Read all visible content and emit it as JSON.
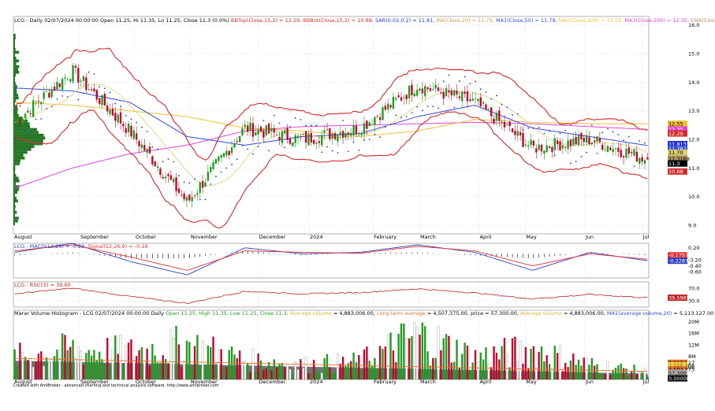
{
  "colors": {
    "bull": "#1e9a1e",
    "bear": "#c0002a",
    "bbands": "#d42a2a",
    "sar": "#2233cc",
    "ma20": "#d8d070",
    "ma50": "#3048d8",
    "ma100": "#f0c030",
    "ma200": "#e040e0",
    "ema7": "#b09060",
    "macd": "#3040c0",
    "signal": "#e03030",
    "rsi": "#c02020",
    "profile": "#006000",
    "volume_ma": "#e07030",
    "volume_avg_fill": "#5a5a5a"
  },
  "price_panel": {
    "header": [
      {
        "text": "LCG - Daily 02/07/2024 00:00:00 Open 11.25, Hi 11.35, Lo 11.25, Close 11.3 (0.0%)",
        "color": "#000000"
      },
      {
        "text": "BBTop(Close,15,2) = 12.29,",
        "color": "#d42a2a"
      },
      {
        "text": "BBBot(Close,15,2) = 10.88,",
        "color": "#d42a2a"
      },
      {
        "text": "SAR(0.02,0.2) = 11.81,",
        "color": "#2233cc"
      },
      {
        "text": "MA(Close,20) = 11.70,",
        "color": "#c0a040"
      },
      {
        "text": "MA1(Close,50) = 11.79,",
        "color": "#3048d8"
      },
      {
        "text": "MA2(Close,100) = 12.55,",
        "color": "#f0c030"
      },
      {
        "text": "MA3(Close,200) = 12.35,",
        "color": "#e040e0"
      },
      {
        "text": "EMA(Close,7) = 11.32",
        "color": "#b09060"
      }
    ],
    "y_ticks": [
      "16.0",
      "15.0",
      "14.0",
      "13.0",
      "12.0",
      "11.0",
      "10.0",
      "9.0"
    ],
    "value_tags": [
      {
        "text": "12.55",
        "bg": "#f0c030",
        "fg": "#000000",
        "v": 12.55
      },
      {
        "text": "12.35",
        "bg": "#e040e0",
        "fg": "#ffffff",
        "v": 12.35
      },
      {
        "text": "12.29",
        "bg": "#d42a2a",
        "fg": "#ffffff",
        "v": 12.21
      },
      {
        "text": "11.8131",
        "bg": "#2233cc",
        "fg": "#ffffff",
        "v": 11.84
      },
      {
        "text": "11.787",
        "bg": "#3048d8",
        "fg": "#ffffff",
        "v": 11.68
      },
      {
        "text": "11.70",
        "bg": "#d8d070",
        "fg": "#000000",
        "v": 11.54
      },
      {
        "text": "11.3168",
        "bg": "#b09060",
        "fg": "#000000",
        "v": 11.33
      },
      {
        "text": "11.3",
        "bg": "#000000",
        "fg": "#ffffff",
        "v": 11.16
      },
      {
        "text": "10.88",
        "bg": "#d42a2a",
        "fg": "#ffffff",
        "v": 10.88
      }
    ]
  },
  "x_axis": {
    "labels": [
      "August",
      "September",
      "October",
      "November",
      "December",
      "2024",
      "February",
      "March",
      "April",
      "May",
      "Jun",
      "Jul"
    ]
  },
  "macd_panel": {
    "header": [
      {
        "text": "LCG - MACD(12,26) = -0.23,",
        "color": "#3040c0"
      },
      {
        "text": "Signal(12,26,9) = -0.18",
        "color": "#e03030"
      }
    ],
    "y_ticks": [
      "0.20",
      "-0.20",
      "-0.40",
      "-0.60"
    ],
    "value_tags": [
      {
        "text": "-0.17574",
        "bg": "#e03030",
        "fg": "#ffffff"
      },
      {
        "text": "-0.22877",
        "bg": "#3040c0",
        "fg": "#ffffff"
      }
    ]
  },
  "rsi_panel": {
    "header": [
      {
        "text": "LCG - RSI(15) = 39.60",
        "color": "#c02020"
      }
    ],
    "y_ticks": [
      "70.0",
      "30.0"
    ],
    "value_tags": [
      {
        "text": "39.5965",
        "bg": "#c02020",
        "fg": "#ffffff"
      }
    ]
  },
  "volume_panel": {
    "header": [
      {
        "text": "Marar Volume Histogram - LCG  02/07/2024 00:00:00  Daily",
        "color": "#000000"
      },
      {
        "text": "Open 11.25, High 11.35, Low 11.25, Close 11.3,",
        "color": "#1e9a1e"
      },
      {
        "text": "Average volume",
        "color": "#e0b030"
      },
      {
        "text": "= 4,883,006.00,",
        "color": "#000000"
      },
      {
        "text": "Long term average",
        "color": "#e07030"
      },
      {
        "text": "= 4,507,375.00, price = 57,300.00,",
        "color": "#000000"
      },
      {
        "text": "Average volume",
        "color": "#e0b030"
      },
      {
        "text": "= 4,883,006.00,",
        "color": "#000000"
      },
      {
        "text": "MA1(average volume,20)",
        "color": "#3048d8"
      },
      {
        "text": "= 5,113,127.00",
        "color": "#000000"
      }
    ],
    "y_ticks": [
      "20M",
      "16M",
      "12M",
      "8M"
    ],
    "value_tags": [
      {
        "text": "5,113,127",
        "bg": "#e07030",
        "fg": "#000000"
      },
      {
        "text": "4,883,006",
        "bg": "#f0d040",
        "fg": "#000000"
      },
      {
        "text": "4,883,006",
        "bg": "#f0d040",
        "fg": "#000000"
      },
      {
        "text": "4,507,375",
        "bg": "#e07030",
        "fg": "#000000"
      },
      {
        "text": "57,300",
        "bg": "#b0b0b0",
        "fg": "#000000"
      },
      {
        "text": "0.000000",
        "bg": "#000000",
        "fg": "#ffffff"
      }
    ]
  },
  "footer": "Created with AmiBroker - advanced charting and technical analysis software. http://www.amibroker.com",
  "chart_data": {
    "type": "line",
    "ticker": "LCG",
    "x": [
      "2023-08",
      "2023-09",
      "2023-10",
      "2023-11",
      "2023-12",
      "2024-01",
      "2024-02",
      "2024-03",
      "2024-04",
      "2024-05",
      "2024-06",
      "2024-07"
    ],
    "series": [
      {
        "name": "Close",
        "values": [
          12.6,
          14.4,
          12.3,
          9.8,
          12.4,
          12.0,
          12.4,
          13.9,
          13.3,
          11.7,
          12.0,
          11.3
        ]
      },
      {
        "name": "MA1(Close,50)",
        "values": [
          13.8,
          13.7,
          13.3,
          12.1,
          11.8,
          12.1,
          12.2,
          12.8,
          13.2,
          12.4,
          12.1,
          11.79
        ]
      },
      {
        "name": "MA3(Close,200)",
        "values": [
          10.3,
          11.0,
          11.5,
          11.8,
          12.3,
          12.45,
          12.5,
          12.55,
          12.6,
          12.55,
          12.45,
          12.35
        ]
      },
      {
        "name": "MA2(Close,100)",
        "values": [
          13.3,
          13.2,
          13.0,
          12.8,
          12.4,
          12.3,
          12.1,
          12.3,
          12.7,
          12.6,
          12.55,
          12.55
        ]
      }
    ],
    "ylim": [
      8.7,
      16.3
    ],
    "last_bar": {
      "date": "02/07/2024",
      "open": 11.25,
      "high": 11.35,
      "low": 11.25,
      "close": 11.3
    },
    "indicators": {
      "BBTop": 12.29,
      "BBBot": 10.88,
      "SAR": 11.81,
      "MA20": 11.7,
      "MA50": 11.79,
      "MA100": 12.55,
      "MA200": 12.35,
      "EMA7": 11.32,
      "MACD": -0.23,
      "Signal": -0.18,
      "RSI15": 39.6,
      "average_volume": 4883006,
      "long_term_average": 4507375,
      "MA1_average_volume_20": 5113127
    },
    "macd": {
      "values": [
        0.05,
        0.35,
        -0.25,
        -0.7,
        0.2,
        0.0,
        0.05,
        0.3,
        0.05,
        -0.55,
        0.05,
        -0.23
      ],
      "signal": [
        0.1,
        0.3,
        -0.1,
        -0.55,
        0.1,
        0.05,
        0.02,
        0.25,
        0.1,
        -0.4,
        0.0,
        -0.18
      ],
      "ylim": [
        -0.8,
        0.35
      ]
    },
    "rsi": {
      "values": [
        52,
        70,
        44,
        22,
        60,
        52,
        56,
        68,
        55,
        36,
        50,
        39.6
      ],
      "ylim": [
        10,
        90
      ]
    },
    "volume": {
      "values_m": [
        9,
        12,
        11,
        14,
        8,
        6,
        7,
        18,
        9,
        12,
        6,
        3
      ],
      "ylim": [
        0,
        24
      ]
    }
  }
}
